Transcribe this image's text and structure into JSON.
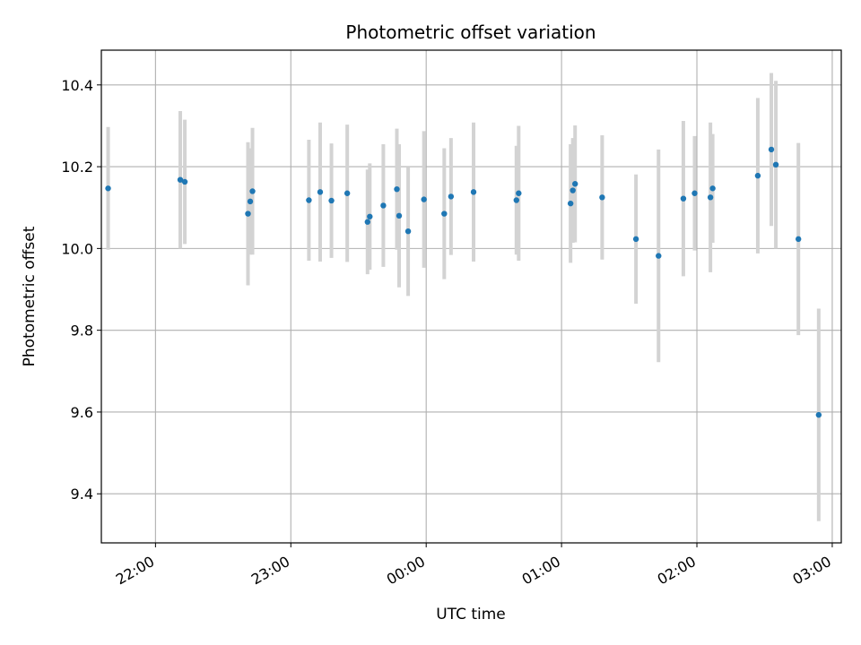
{
  "chart_data": {
    "type": "scatter",
    "title": "Photometric offset variation",
    "xlabel": "UTC time",
    "ylabel": "Photometric offset",
    "grid": true,
    "legend": "none",
    "x_axis": {
      "type": "time",
      "range": [
        "21:36",
        "03:04"
      ],
      "ticks": [
        "22:00",
        "23:00",
        "00:00",
        "01:00",
        "02:00",
        "03:00"
      ]
    },
    "y_axis": {
      "range": [
        9.28,
        10.485
      ],
      "ticks": [
        "9.4",
        "9.6",
        "9.8",
        "10.0",
        "10.2",
        "10.4"
      ]
    },
    "colors": {
      "points": "#1f77b4",
      "error_bars": "#d3d3d3",
      "grid": "#b0b0b0"
    },
    "series": [
      {
        "points": [
          {
            "x": "21:39",
            "y": 10.147,
            "err": 0.15
          },
          {
            "x": "22:11",
            "y": 10.168,
            "err": 0.168
          },
          {
            "x": "22:13",
            "y": 10.163,
            "err": 0.152
          },
          {
            "x": "22:41",
            "y": 10.085,
            "err": 0.175
          },
          {
            "x": "22:42",
            "y": 10.115,
            "err": 0.13
          },
          {
            "x": "22:43",
            "y": 10.14,
            "err": 0.155
          },
          {
            "x": "23:08",
            "y": 10.118,
            "err": 0.148
          },
          {
            "x": "23:13",
            "y": 10.138,
            "err": 0.17
          },
          {
            "x": "23:18",
            "y": 10.117,
            "err": 0.14
          },
          {
            "x": "23:25",
            "y": 10.135,
            "err": 0.168
          },
          {
            "x": "23:34",
            "y": 10.065,
            "err": 0.128
          },
          {
            "x": "23:35",
            "y": 10.078,
            "err": 0.13
          },
          {
            "x": "23:41",
            "y": 10.105,
            "err": 0.15
          },
          {
            "x": "23:47",
            "y": 10.145,
            "err": 0.148
          },
          {
            "x": "23:48",
            "y": 10.08,
            "err": 0.175
          },
          {
            "x": "23:52",
            "y": 10.042,
            "err": 0.158
          },
          {
            "x": "23:59",
            "y": 10.12,
            "err": 0.167
          },
          {
            "x": "00:08",
            "y": 10.085,
            "err": 0.16
          },
          {
            "x": "00:11",
            "y": 10.127,
            "err": 0.143
          },
          {
            "x": "00:21",
            "y": 10.138,
            "err": 0.17
          },
          {
            "x": "00:40",
            "y": 10.118,
            "err": 0.133
          },
          {
            "x": "00:41",
            "y": 10.135,
            "err": 0.165
          },
          {
            "x": "01:04",
            "y": 10.11,
            "err": 0.145
          },
          {
            "x": "01:05",
            "y": 10.142,
            "err": 0.128
          },
          {
            "x": "01:06",
            "y": 10.158,
            "err": 0.143
          },
          {
            "x": "01:18",
            "y": 10.125,
            "err": 0.152
          },
          {
            "x": "01:33",
            "y": 10.023,
            "err": 0.158
          },
          {
            "x": "01:43",
            "y": 9.982,
            "err": 0.26
          },
          {
            "x": "01:54",
            "y": 10.122,
            "err": 0.19
          },
          {
            "x": "01:59",
            "y": 10.135,
            "err": 0.14
          },
          {
            "x": "02:06",
            "y": 10.125,
            "err": 0.183
          },
          {
            "x": "02:07",
            "y": 10.147,
            "err": 0.133
          },
          {
            "x": "02:27",
            "y": 10.178,
            "err": 0.19
          },
          {
            "x": "02:33",
            "y": 10.242,
            "err": 0.187
          },
          {
            "x": "02:35",
            "y": 10.205,
            "err": 0.205
          },
          {
            "x": "02:45",
            "y": 10.023,
            "err": 0.235
          },
          {
            "x": "02:54",
            "y": 9.593,
            "err": 0.26
          }
        ]
      }
    ]
  }
}
